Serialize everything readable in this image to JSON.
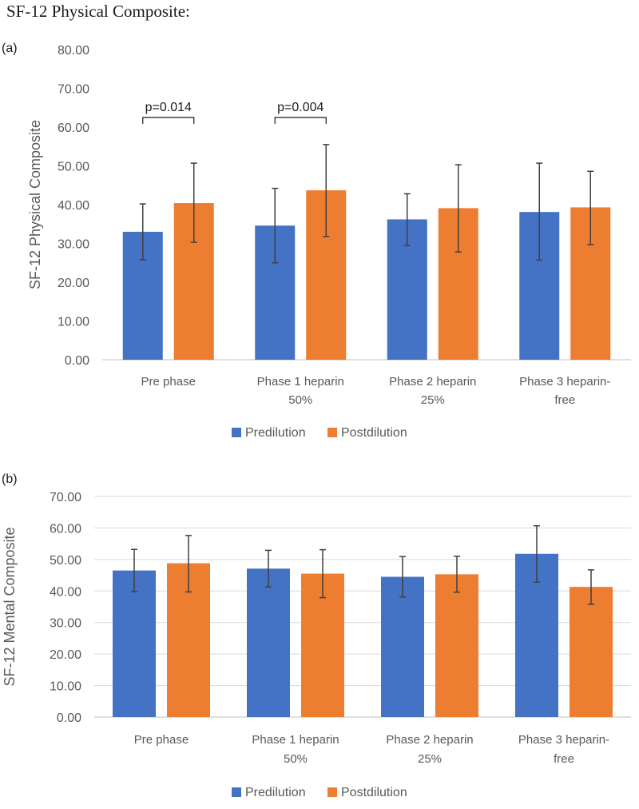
{
  "page": {
    "title": "SF-12 Physical Composite:"
  },
  "colors": {
    "predilution": "#4472C4",
    "postdilution": "#ED7D31",
    "axis": "#595959",
    "grid": "#D9D9D9",
    "errorbar": "#404040"
  },
  "chart_data": [
    {
      "panel": "(a)",
      "type": "bar",
      "title": "",
      "xlabel": "",
      "ylabel": "SF-12 Physical Composite",
      "ylim": [
        0,
        80
      ],
      "ytick_step": 10,
      "ytick_labels": [
        "0.00",
        "10.00",
        "20.00",
        "30.00",
        "40.00",
        "50.00",
        "60.00",
        "70.00",
        "80.00"
      ],
      "grid": false,
      "legend": "bottom",
      "categories": [
        [
          "Pre phase"
        ],
        [
          "Phase 1 heparin",
          "50%"
        ],
        [
          "Phase 2 heparin",
          "25%"
        ],
        [
          "Phase 3 heparin-",
          "free"
        ]
      ],
      "series": [
        {
          "name": "Predilution",
          "values": [
            33.0,
            34.6,
            36.2,
            38.1
          ],
          "err_low": [
            25.8,
            25.0,
            29.5,
            25.7
          ],
          "err_high": [
            40.2,
            44.2,
            42.8,
            50.7
          ]
        },
        {
          "name": "Postdilution",
          "values": [
            40.4,
            43.7,
            39.1,
            39.3
          ],
          "err_low": [
            30.3,
            31.8,
            27.8,
            29.7
          ],
          "err_high": [
            50.7,
            55.5,
            50.3,
            48.6
          ]
        }
      ],
      "annotations": [
        {
          "text": "p=0.014",
          "category_index": 0,
          "bracket_y": 62.5
        },
        {
          "text": "p=0.004",
          "category_index": 1,
          "bracket_y": 62.5
        }
      ]
    },
    {
      "panel": "(b)",
      "type": "bar",
      "title": "",
      "xlabel": "",
      "ylabel": "SF-12 Mental Composite",
      "ylim": [
        0,
        70
      ],
      "ytick_step": 10,
      "ytick_labels": [
        "0.00",
        "10.00",
        "20.00",
        "30.00",
        "40.00",
        "50.00",
        "60.00",
        "70.00"
      ],
      "grid": true,
      "legend": "bottom",
      "categories": [
        [
          "Pre phase"
        ],
        [
          "Phase 1 heparin",
          "50%"
        ],
        [
          "Phase 2 heparin",
          "25%"
        ],
        [
          "Phase 3 heparin-",
          "free"
        ]
      ],
      "series": [
        {
          "name": "Predilution",
          "values": [
            46.5,
            47.1,
            44.5,
            51.8
          ],
          "err_low": [
            39.8,
            41.3,
            38.1,
            42.8
          ],
          "err_high": [
            53.2,
            52.9,
            50.9,
            60.7
          ]
        },
        {
          "name": "Postdilution",
          "values": [
            48.8,
            45.5,
            45.3,
            41.3
          ],
          "err_low": [
            39.7,
            37.9,
            39.6,
            35.8
          ],
          "err_high": [
            57.6,
            53.1,
            51.0,
            46.7
          ]
        }
      ],
      "annotations": []
    }
  ]
}
